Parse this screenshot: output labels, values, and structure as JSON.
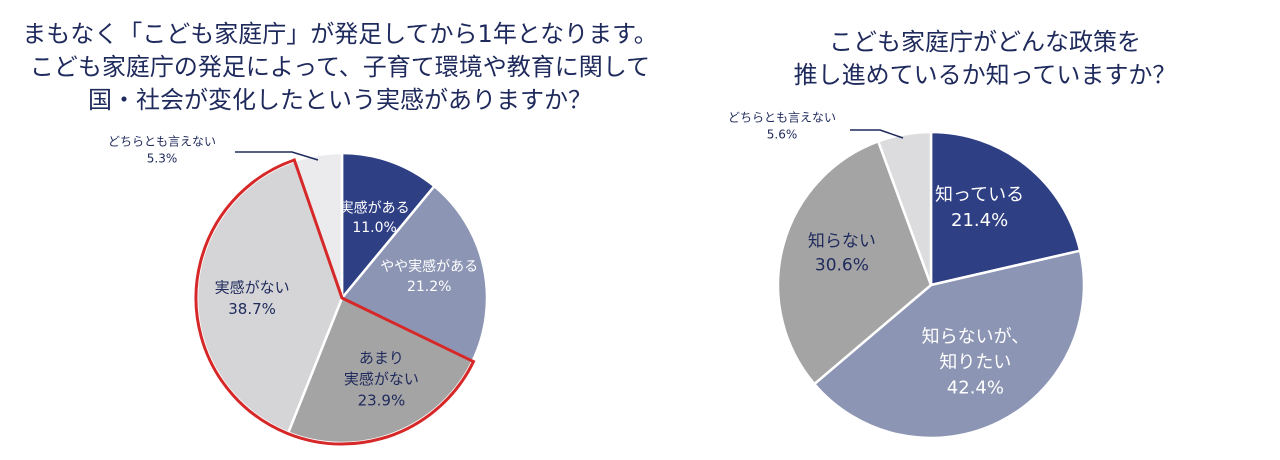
{
  "chart_data": [
    {
      "type": "pie",
      "title": [
        "まもなく「こども家庭庁」が発足してから1年となります。",
        "こども家庭庁の発足によって、子育て環境や教育に関して",
        "国・社会が変化したという実感がありますか？"
      ],
      "slices": [
        {
          "label": [
            "実感がある"
          ],
          "value": 11.0,
          "value_label": "11.0%",
          "color": "#2e3f84"
        },
        {
          "label": [
            "やや実感がある"
          ],
          "value": 21.2,
          "value_label": "21.2%",
          "color": "#8c95b4"
        },
        {
          "label": [
            "あまり",
            "実感がない"
          ],
          "value": 23.9,
          "value_label": "23.9%",
          "color": "#a4a4a4"
        },
        {
          "label": [
            "実感がない"
          ],
          "value": 38.7,
          "value_label": "38.7%",
          "color": "#d5d5d7"
        },
        {
          "label": [
            "どちらとも言えない"
          ],
          "value": 5.3,
          "value_label": "5.3%",
          "color": "#ebebed"
        }
      ],
      "highlighted_slices": [
        2,
        3
      ],
      "highlight_color": "#d62828"
    },
    {
      "type": "pie",
      "title": [
        "こども家庭庁がどんな政策を",
        "推し進めているか知っていますか？"
      ],
      "slices": [
        {
          "label": [
            "知っている"
          ],
          "value": 21.4,
          "value_label": "21.4%",
          "color": "#2e3f84"
        },
        {
          "label": [
            "知らないが、",
            "知りたい"
          ],
          "value": 42.4,
          "value_label": "42.4%",
          "color": "#8c95b4"
        },
        {
          "label": [
            "知らない"
          ],
          "value": 30.6,
          "value_label": "30.6%",
          "color": "#a4a4a4"
        },
        {
          "label": [
            "どちらとも言えない"
          ],
          "value": 5.6,
          "value_label": "5.6%",
          "color": "#dcdcde"
        }
      ]
    }
  ]
}
